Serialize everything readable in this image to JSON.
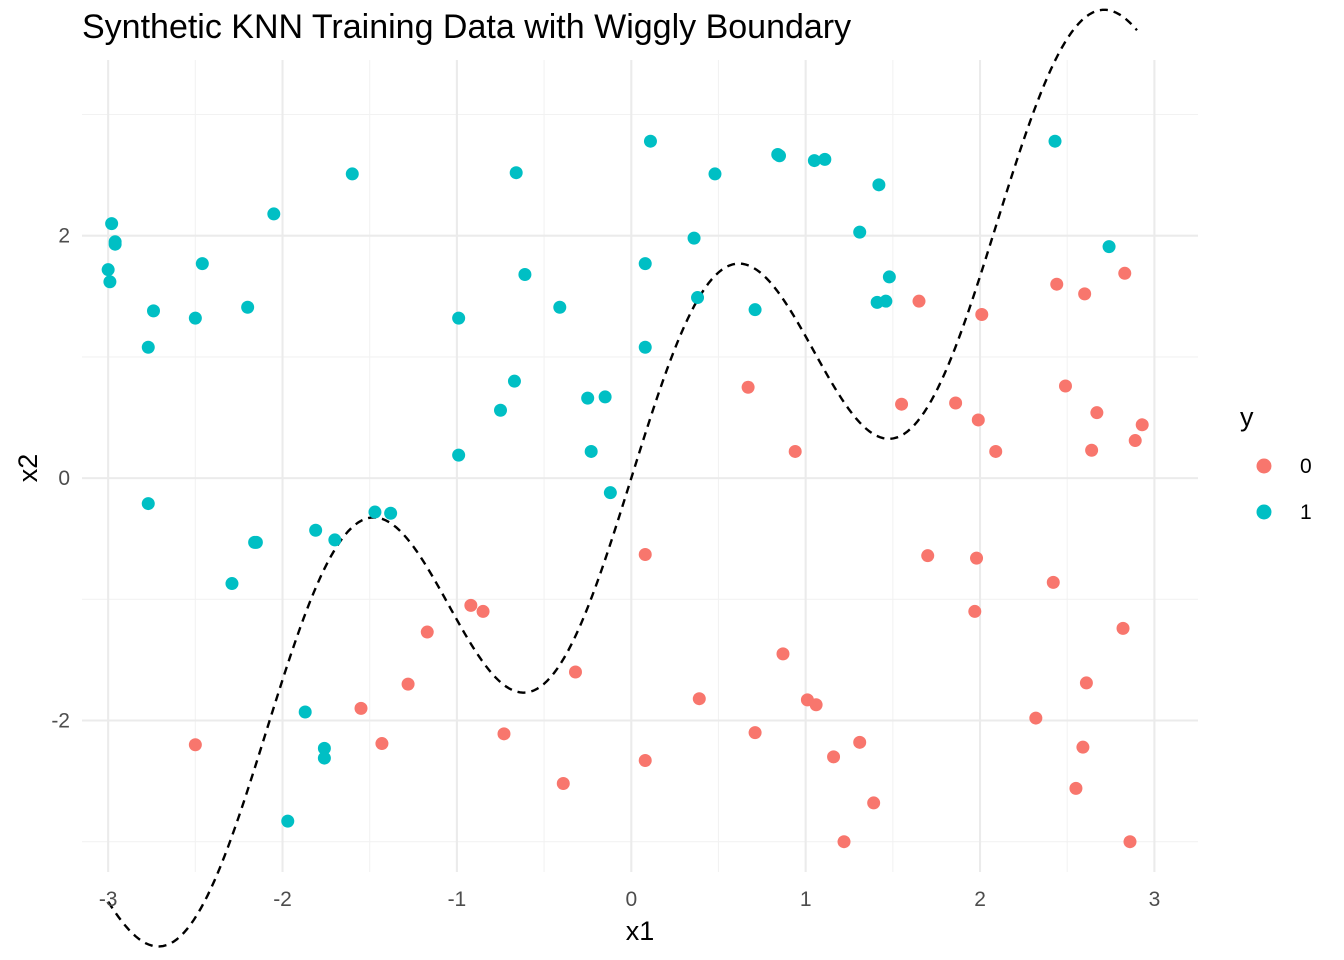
{
  "chart_data": {
    "type": "scatter",
    "title": "Synthetic KNN Training Data with Wiggly Boundary",
    "xlabel": "x1",
    "ylabel": "x2",
    "xlim": [
      -3.15,
      3.25
    ],
    "ylim": [
      -3.25,
      3.45
    ],
    "x_ticks": [
      -3,
      -2,
      -1,
      0,
      1,
      2,
      3
    ],
    "x_tick_labels": [
      "-3",
      "-2",
      "-1",
      "0",
      "1",
      "2",
      "3"
    ],
    "y_ticks": [
      -2,
      0,
      2
    ],
    "y_tick_labels": [
      "-2",
      "0",
      "2"
    ],
    "grid": true,
    "legend": {
      "title": "y",
      "position": "right",
      "entries": [
        {
          "label": "0",
          "color": "#F8766D"
        },
        {
          "label": "1",
          "color": "#00BFC4"
        }
      ]
    },
    "boundary": {
      "style": "dashed",
      "color": "#000000",
      "x_range": [
        -3,
        2.9
      ],
      "formula": "x2 = x1 + 1.2*sin(3*x1)"
    },
    "series": [
      {
        "name": "0",
        "color": "#F8766D",
        "points": [
          [
            -2.5,
            -2.2
          ],
          [
            -1.55,
            -1.9
          ],
          [
            -1.43,
            -2.19
          ],
          [
            -1.28,
            -1.7
          ],
          [
            -1.17,
            -1.27
          ],
          [
            -0.92,
            -1.05
          ],
          [
            -0.85,
            -1.1
          ],
          [
            -0.73,
            -2.11
          ],
          [
            -0.32,
            -1.6
          ],
          [
            -0.39,
            -2.52
          ],
          [
            0.08,
            -0.63
          ],
          [
            0.08,
            -2.33
          ],
          [
            0.39,
            -1.82
          ],
          [
            0.67,
            0.75
          ],
          [
            0.71,
            -2.1
          ],
          [
            0.87,
            -1.45
          ],
          [
            0.94,
            0.22
          ],
          [
            1.01,
            -1.83
          ],
          [
            1.06,
            -1.87
          ],
          [
            1.16,
            -2.3
          ],
          [
            1.22,
            -3.0
          ],
          [
            1.31,
            -2.18
          ],
          [
            1.39,
            -2.68
          ],
          [
            1.55,
            0.61
          ],
          [
            1.65,
            1.46
          ],
          [
            1.7,
            -0.64
          ],
          [
            1.86,
            0.62
          ],
          [
            1.97,
            -1.1
          ],
          [
            1.98,
            -0.66
          ],
          [
            1.99,
            0.48
          ],
          [
            2.01,
            1.35
          ],
          [
            2.09,
            0.22
          ],
          [
            2.32,
            -1.98
          ],
          [
            2.42,
            -0.86
          ],
          [
            2.44,
            1.6
          ],
          [
            2.49,
            0.76
          ],
          [
            2.55,
            -2.56
          ],
          [
            2.59,
            -2.22
          ],
          [
            2.6,
            1.52
          ],
          [
            2.61,
            -1.69
          ],
          [
            2.64,
            0.23
          ],
          [
            2.67,
            0.54
          ],
          [
            2.82,
            -1.24
          ],
          [
            2.83,
            1.69
          ],
          [
            2.86,
            -3.0
          ],
          [
            2.89,
            0.31
          ],
          [
            2.93,
            0.44
          ]
        ]
      },
      {
        "name": "1",
        "color": "#00BFC4",
        "points": [
          [
            -3.0,
            1.72
          ],
          [
            -2.99,
            1.62
          ],
          [
            -2.98,
            2.1
          ],
          [
            -2.96,
            1.93
          ],
          [
            -2.96,
            1.95
          ],
          [
            -2.77,
            1.08
          ],
          [
            -2.77,
            -0.21
          ],
          [
            -2.74,
            1.38
          ],
          [
            -2.5,
            1.32
          ],
          [
            -2.46,
            1.77
          ],
          [
            -2.29,
            -0.87
          ],
          [
            -2.2,
            1.41
          ],
          [
            -2.16,
            -0.53
          ],
          [
            -2.15,
            -0.53
          ],
          [
            -2.05,
            2.18
          ],
          [
            -1.97,
            -2.83
          ],
          [
            -1.87,
            -1.93
          ],
          [
            -1.81,
            -0.43
          ],
          [
            -1.76,
            -2.23
          ],
          [
            -1.76,
            -2.31
          ],
          [
            -1.7,
            -0.51
          ],
          [
            -1.6,
            2.51
          ],
          [
            -1.47,
            -0.28
          ],
          [
            -1.38,
            -0.29
          ],
          [
            -0.99,
            1.32
          ],
          [
            -0.99,
            0.19
          ],
          [
            -0.75,
            0.56
          ],
          [
            -0.67,
            0.8
          ],
          [
            -0.66,
            2.52
          ],
          [
            -0.61,
            1.68
          ],
          [
            -0.41,
            1.41
          ],
          [
            -0.25,
            0.66
          ],
          [
            -0.23,
            0.22
          ],
          [
            -0.15,
            0.67
          ],
          [
            -0.12,
            -0.12
          ],
          [
            0.08,
            1.77
          ],
          [
            0.08,
            1.08
          ],
          [
            0.11,
            2.78
          ],
          [
            0.36,
            1.98
          ],
          [
            0.38,
            1.49
          ],
          [
            0.48,
            2.51
          ],
          [
            0.71,
            1.39
          ],
          [
            0.84,
            2.67
          ],
          [
            0.85,
            2.66
          ],
          [
            1.05,
            2.62
          ],
          [
            1.11,
            2.63
          ],
          [
            1.31,
            2.03
          ],
          [
            1.41,
            1.45
          ],
          [
            1.42,
            2.42
          ],
          [
            1.46,
            1.46
          ],
          [
            1.48,
            1.66
          ],
          [
            2.43,
            2.78
          ],
          [
            2.74,
            1.91
          ]
        ]
      }
    ]
  }
}
